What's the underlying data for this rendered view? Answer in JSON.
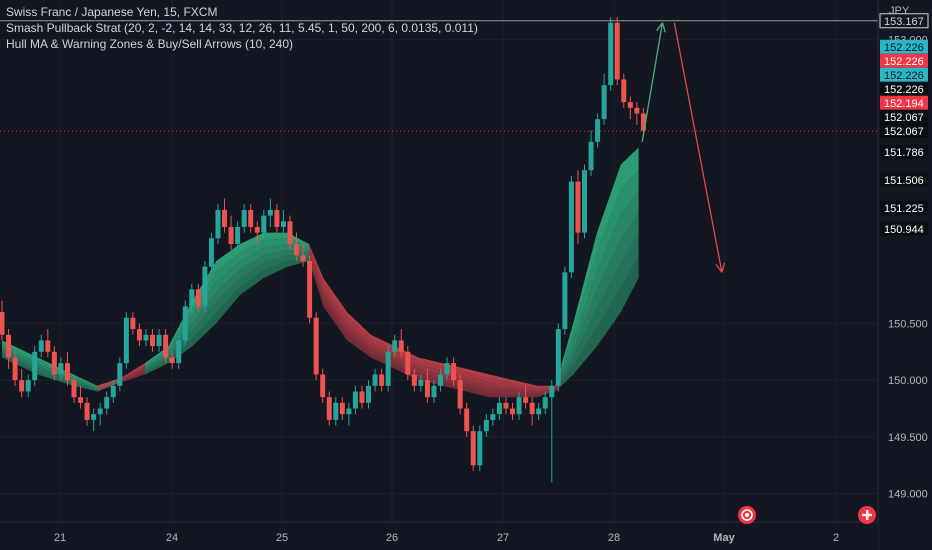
{
  "legend": {
    "symbol": "Swiss Franc / Japanese Yen, 15, FXCM",
    "indicator1": "Smash Pullback Strat (20, 2, -2, 14, 14, 33, 12, 26, 11, 5.45, 1, 50, 200, 6, 0.0135, 0.011)",
    "indicator2": "Hull MA & Warning Zones & Buy/Sell Arrows (10, 240)"
  },
  "currency": "JPY",
  "colors": {
    "background": "#131722",
    "grid": "#1e222d",
    "bull": "#26a69a",
    "bear": "#ef5350",
    "zone_green": "#2fa77a",
    "zone_red": "#c0404a",
    "teal_label": "#29b6c6",
    "red_label": "#f23645",
    "buy_arrow": "#4caf7a",
    "sell_arrow": "#e5484d",
    "crosshair": "#9598a1"
  },
  "icons": [
    "alert-icon",
    "add-icon"
  ],
  "chart_data": {
    "type": "candlestick",
    "x_tick_labels": [
      "21",
      "24",
      "25",
      "26",
      "27",
      "28",
      "May",
      "2"
    ],
    "y_tick_labels": [
      "153.000",
      "150.500",
      "150.000",
      "149.500",
      "149.000"
    ],
    "ylim": [
      148.75,
      153.35
    ],
    "price_markers": [
      {
        "value": "153.167",
        "style": "crosshair"
      },
      {
        "value": "152.226",
        "style": "teal"
      },
      {
        "value": "152.226",
        "style": "red"
      },
      {
        "value": "152.226",
        "style": "teal"
      },
      {
        "value": "152.226",
        "style": "dark"
      },
      {
        "value": "152.194",
        "style": "red"
      },
      {
        "value": "152.067",
        "style": "dark"
      },
      {
        "value": "152.067",
        "style": "dark"
      },
      {
        "value": "151.786",
        "style": "dark"
      },
      {
        "value": "151.506",
        "style": "dark"
      },
      {
        "value": "151.225",
        "style": "dark"
      },
      {
        "value": "150.944",
        "style": "dark"
      }
    ],
    "price_path": [
      [
        0,
        150.6
      ],
      [
        1.5,
        150.0
      ],
      [
        2.5,
        149.9
      ],
      [
        3.5,
        150.3
      ],
      [
        4.5,
        150.05
      ],
      [
        5.5,
        150.2
      ],
      [
        6.5,
        149.85
      ],
      [
        7.5,
        149.65
      ],
      [
        8.5,
        149.6
      ],
      [
        10,
        149.9
      ],
      [
        11,
        150.55
      ],
      [
        12,
        150.35
      ],
      [
        13,
        150.4
      ],
      [
        14,
        150.2
      ],
      [
        15,
        150.15
      ],
      [
        16,
        150.8
      ],
      [
        17,
        150.65
      ],
      [
        18,
        151.25
      ],
      [
        19,
        151.45
      ],
      [
        20,
        151.2
      ],
      [
        21,
        151.5
      ],
      [
        22,
        151.3
      ],
      [
        23,
        151.5
      ],
      [
        24,
        151.35
      ],
      [
        25,
        151.2
      ],
      [
        25.8,
        151.05
      ],
      [
        26.5,
        150.3
      ],
      [
        27,
        149.85
      ],
      [
        27.5,
        149.65
      ],
      [
        28,
        149.8
      ],
      [
        29,
        149.7
      ],
      [
        30,
        149.9
      ],
      [
        31,
        149.8
      ],
      [
        32,
        150.05
      ],
      [
        33,
        149.95
      ],
      [
        34,
        150.35
      ],
      [
        35,
        150.25
      ],
      [
        36,
        150.05
      ],
      [
        37,
        149.95
      ],
      [
        38,
        150.0
      ],
      [
        39,
        149.85
      ],
      [
        40,
        150.05
      ],
      [
        41,
        150.15
      ],
      [
        42,
        149.55
      ],
      [
        42.7,
        149.2
      ],
      [
        43.5,
        149.6
      ],
      [
        44.5,
        149.7
      ],
      [
        45.5,
        149.8
      ],
      [
        46.5,
        149.75
      ],
      [
        47,
        149.7
      ],
      [
        47.6,
        149.95
      ],
      [
        48.2,
        150.6
      ],
      [
        49,
        151.8
      ],
      [
        49.7,
        151.3
      ],
      [
        50.5,
        152.1
      ],
      [
        51,
        152.3
      ],
      [
        51.6,
        152.6
      ],
      [
        52.4,
        153.15
      ],
      [
        52.9,
        152.5
      ],
      [
        53.6,
        152.4
      ],
      [
        54.3,
        152.35
      ],
      [
        54.8,
        152.2
      ]
    ],
    "candles": [
      [
        0,
        150.6,
        150.7,
        150.35,
        150.4
      ],
      [
        0.55,
        150.4,
        150.45,
        150.1,
        150.2
      ],
      [
        1.1,
        150.2,
        150.25,
        149.95,
        150.0
      ],
      [
        1.65,
        150.0,
        150.1,
        149.85,
        149.9
      ],
      [
        2.2,
        149.9,
        150.05,
        149.85,
        150.0
      ],
      [
        2.75,
        150.0,
        150.3,
        149.95,
        150.25
      ],
      [
        3.3,
        150.25,
        150.4,
        150.2,
        150.35
      ],
      [
        3.85,
        150.35,
        150.45,
        150.2,
        150.25
      ],
      [
        4.4,
        150.25,
        150.3,
        150.0,
        150.05
      ],
      [
        4.95,
        150.05,
        150.2,
        150.0,
        150.15
      ],
      [
        5.5,
        150.15,
        150.25,
        149.95,
        150.0
      ],
      [
        6.05,
        150.0,
        150.05,
        149.8,
        149.85
      ],
      [
        6.6,
        149.85,
        149.95,
        149.75,
        149.8
      ],
      [
        7.15,
        149.8,
        149.85,
        149.6,
        149.65
      ],
      [
        7.7,
        149.65,
        149.75,
        149.55,
        149.7
      ],
      [
        8.25,
        149.7,
        149.8,
        149.6,
        149.75
      ],
      [
        8.8,
        149.75,
        149.9,
        149.7,
        149.85
      ],
      [
        9.35,
        149.85,
        150.0,
        149.8,
        149.95
      ],
      [
        9.9,
        149.95,
        150.2,
        149.9,
        150.15
      ],
      [
        10.45,
        150.15,
        150.6,
        150.1,
        150.55
      ],
      [
        11,
        150.55,
        150.6,
        150.4,
        150.45
      ],
      [
        11.55,
        150.45,
        150.5,
        150.3,
        150.35
      ],
      [
        12.1,
        150.35,
        150.45,
        150.3,
        150.4
      ],
      [
        12.65,
        150.4,
        150.45,
        150.25,
        150.3
      ],
      [
        13.2,
        150.3,
        150.45,
        150.25,
        150.4
      ],
      [
        13.75,
        150.4,
        150.45,
        150.15,
        150.2
      ],
      [
        14.3,
        150.2,
        150.25,
        150.1,
        150.15
      ],
      [
        14.85,
        150.15,
        150.4,
        150.1,
        150.35
      ],
      [
        15.4,
        150.35,
        150.7,
        150.3,
        150.65
      ],
      [
        15.95,
        150.65,
        150.85,
        150.6,
        150.8
      ],
      [
        16.5,
        150.8,
        150.85,
        150.6,
        150.65
      ],
      [
        17.05,
        150.65,
        151.05,
        150.6,
        151.0
      ],
      [
        17.6,
        151.0,
        151.3,
        150.95,
        151.25
      ],
      [
        18.15,
        151.25,
        151.55,
        151.2,
        151.5
      ],
      [
        18.7,
        151.5,
        151.6,
        151.3,
        151.35
      ],
      [
        19.25,
        151.35,
        151.45,
        151.15,
        151.2
      ],
      [
        19.8,
        151.2,
        151.4,
        151.15,
        151.35
      ],
      [
        20.35,
        151.35,
        151.55,
        151.3,
        151.5
      ],
      [
        20.9,
        151.5,
        151.55,
        151.3,
        151.35
      ],
      [
        21.45,
        151.35,
        151.4,
        151.2,
        151.3
      ],
      [
        22,
        151.3,
        151.5,
        151.25,
        151.45
      ],
      [
        22.55,
        151.45,
        151.6,
        151.35,
        151.5
      ],
      [
        23.1,
        151.5,
        151.55,
        151.3,
        151.35
      ],
      [
        23.65,
        151.35,
        151.5,
        151.3,
        151.4
      ],
      [
        24.2,
        151.4,
        151.45,
        151.15,
        151.2
      ],
      [
        24.75,
        151.2,
        151.3,
        151.05,
        151.1
      ],
      [
        25.3,
        151.1,
        151.2,
        151.0,
        151.05
      ],
      [
        25.85,
        151.05,
        151.1,
        150.5,
        150.55
      ],
      [
        26.4,
        150.55,
        150.6,
        150.0,
        150.05
      ],
      [
        26.95,
        150.05,
        150.1,
        149.8,
        149.85
      ],
      [
        27.5,
        149.85,
        149.9,
        149.6,
        149.65
      ],
      [
        28.05,
        149.65,
        149.85,
        149.6,
        149.8
      ],
      [
        28.6,
        149.8,
        149.85,
        149.65,
        149.7
      ],
      [
        29.15,
        149.7,
        149.8,
        149.6,
        149.75
      ],
      [
        29.7,
        149.75,
        149.95,
        149.7,
        149.9
      ],
      [
        30.25,
        149.9,
        149.95,
        149.75,
        149.8
      ],
      [
        30.8,
        149.8,
        150.0,
        149.75,
        149.95
      ],
      [
        31.35,
        149.95,
        150.1,
        149.9,
        150.05
      ],
      [
        31.9,
        150.05,
        150.1,
        149.9,
        149.95
      ],
      [
        32.45,
        149.95,
        150.3,
        149.9,
        150.25
      ],
      [
        33,
        150.25,
        150.4,
        150.2,
        150.35
      ],
      [
        33.55,
        150.35,
        150.45,
        150.2,
        150.25
      ],
      [
        34.1,
        150.25,
        150.3,
        150.0,
        150.05
      ],
      [
        34.65,
        150.05,
        150.1,
        149.9,
        149.95
      ],
      [
        35.2,
        149.95,
        150.05,
        149.9,
        150.0
      ],
      [
        35.75,
        150.0,
        150.1,
        149.8,
        149.85
      ],
      [
        36.3,
        149.85,
        150.0,
        149.8,
        149.95
      ],
      [
        36.85,
        149.95,
        150.1,
        149.9,
        150.05
      ],
      [
        37.4,
        150.05,
        150.2,
        150.0,
        150.15
      ],
      [
        37.95,
        150.15,
        150.2,
        149.95,
        150.0
      ],
      [
        38.5,
        150.0,
        150.05,
        149.7,
        149.75
      ],
      [
        39.05,
        149.75,
        149.8,
        149.5,
        149.55
      ],
      [
        39.6,
        149.55,
        149.6,
        149.2,
        149.25
      ],
      [
        40.15,
        149.25,
        149.6,
        149.2,
        149.55
      ],
      [
        40.7,
        149.55,
        149.7,
        149.5,
        149.65
      ],
      [
        41.25,
        149.65,
        149.75,
        149.6,
        149.7
      ],
      [
        41.8,
        149.7,
        149.85,
        149.65,
        149.8
      ],
      [
        42.35,
        149.8,
        149.85,
        149.7,
        149.75
      ],
      [
        42.9,
        149.75,
        149.8,
        149.65,
        149.7
      ],
      [
        43.45,
        149.7,
        149.9,
        149.65,
        149.85
      ],
      [
        44,
        149.85,
        149.95,
        149.75,
        149.8
      ],
      [
        44.55,
        149.8,
        149.85,
        149.6,
        149.7
      ],
      [
        45.1,
        149.7,
        149.8,
        149.65,
        149.75
      ],
      [
        45.65,
        149.75,
        149.9,
        149.7,
        149.85
      ],
      [
        46.2,
        149.85,
        150.0,
        149.1,
        149.95
      ],
      [
        46.75,
        149.95,
        150.5,
        149.9,
        150.45
      ],
      [
        47.3,
        150.45,
        151.0,
        150.4,
        150.95
      ],
      [
        47.85,
        150.95,
        151.8,
        150.9,
        151.75
      ],
      [
        48.4,
        151.75,
        151.85,
        151.2,
        151.3
      ],
      [
        48.95,
        151.3,
        151.9,
        151.25,
        151.85
      ],
      [
        49.5,
        151.85,
        152.2,
        151.8,
        152.1
      ],
      [
        50.05,
        152.1,
        152.35,
        152.05,
        152.3
      ],
      [
        50.6,
        152.3,
        152.7,
        152.25,
        152.6
      ],
      [
        51.15,
        152.6,
        153.2,
        152.55,
        153.15
      ],
      [
        51.7,
        153.15,
        153.2,
        152.6,
        152.65
      ],
      [
        52.25,
        152.65,
        152.7,
        152.4,
        152.45
      ],
      [
        52.8,
        152.45,
        152.5,
        152.3,
        152.4
      ],
      [
        53.35,
        152.4,
        152.45,
        152.25,
        152.35
      ],
      [
        53.9,
        152.35,
        152.4,
        152.15,
        152.2
      ]
    ],
    "hull_band": [
      [
        0,
        150.2,
        150.35
      ],
      [
        3,
        150.05,
        150.2
      ],
      [
        6,
        149.95,
        150.05
      ],
      [
        8,
        149.9,
        149.95
      ],
      [
        10,
        149.98,
        150.02
      ],
      [
        12,
        150.05,
        150.15
      ],
      [
        14,
        150.15,
        150.3
      ],
      [
        16,
        150.3,
        150.7
      ],
      [
        18,
        150.5,
        151.05
      ],
      [
        20,
        150.75,
        151.2
      ],
      [
        22,
        150.9,
        151.3
      ],
      [
        24,
        151.0,
        151.3
      ],
      [
        25.8,
        151.05,
        151.2
      ],
      [
        27,
        150.65,
        150.9
      ],
      [
        29,
        150.35,
        150.6
      ],
      [
        31,
        150.2,
        150.4
      ],
      [
        33,
        150.1,
        150.3
      ],
      [
        35,
        150.0,
        150.2
      ],
      [
        37,
        149.95,
        150.15
      ],
      [
        39,
        149.9,
        150.1
      ],
      [
        41,
        149.85,
        150.05
      ],
      [
        43,
        149.85,
        150.0
      ],
      [
        45,
        149.85,
        149.95
      ],
      [
        46.5,
        149.9,
        149.95
      ],
      [
        48,
        150.05,
        150.5
      ],
      [
        50,
        150.3,
        151.3
      ],
      [
        52,
        150.6,
        151.9
      ],
      [
        53.5,
        150.9,
        152.05
      ]
    ],
    "signals": [
      {
        "type": "buy",
        "from": [
          53.8,
          152.1
        ],
        "to": [
          55.5,
          153.15
        ]
      },
      {
        "type": "sell",
        "from": [
          56.5,
          153.15
        ],
        "to": [
          60.5,
          150.95
        ]
      }
    ],
    "grid": true,
    "legend_position": "top-left"
  }
}
